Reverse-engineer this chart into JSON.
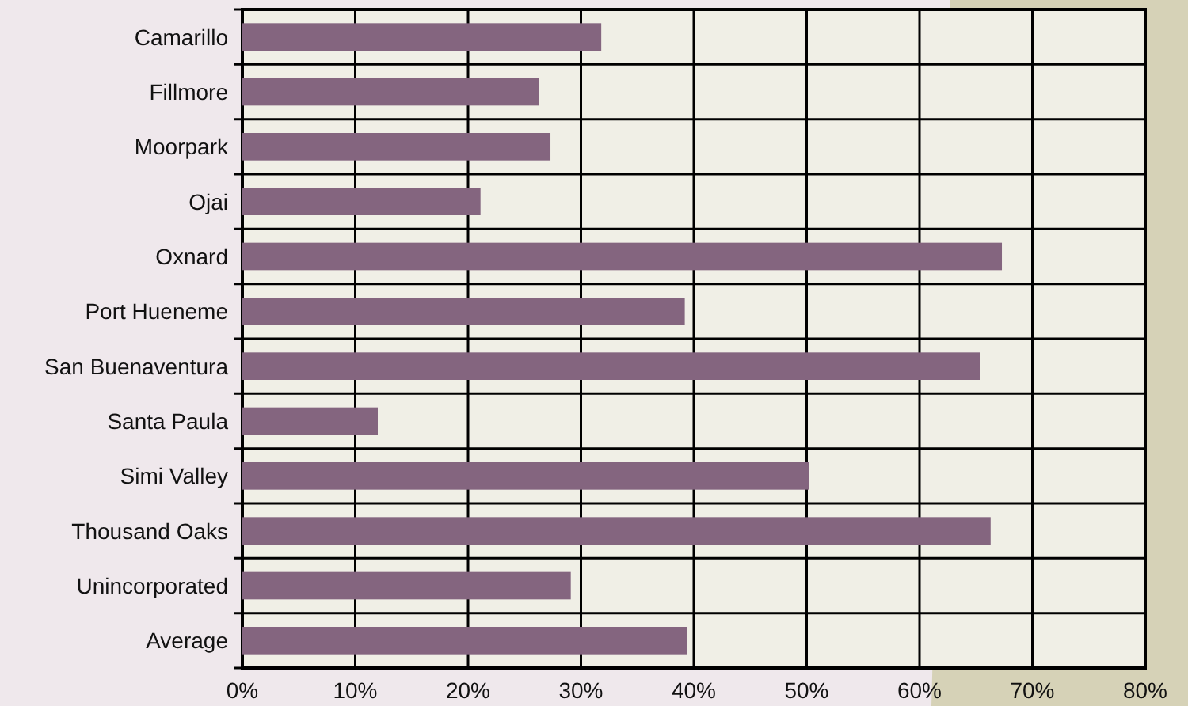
{
  "chart_data": {
    "type": "bar",
    "orientation": "horizontal",
    "categories": [
      "Camarillo",
      "Fillmore",
      "Moorpark",
      "Ojai",
      "Oxnard",
      "Port Hueneme",
      "San Buenaventura",
      "Santa Paula",
      "Simi Valley",
      "Thousand Oaks",
      "Unincorporated",
      "Average"
    ],
    "values": [
      31.8,
      26.3,
      27.3,
      21.1,
      67.3,
      39.2,
      65.4,
      12.0,
      50.2,
      66.3,
      29.1,
      39.4
    ],
    "color": "#84657f",
    "xlim": [
      0,
      80
    ],
    "xticks": [
      {
        "value": 0,
        "label": "0%"
      },
      {
        "value": 10,
        "label": "10%"
      },
      {
        "value": 20,
        "label": "20%"
      },
      {
        "value": 30,
        "label": "30%"
      },
      {
        "value": 40,
        "label": "40%"
      },
      {
        "value": 50,
        "label": "50%"
      },
      {
        "value": 60,
        "label": "60%"
      },
      {
        "value": 70,
        "label": "70%"
      },
      {
        "value": 80,
        "label": "80%"
      }
    ],
    "grid": true
  }
}
